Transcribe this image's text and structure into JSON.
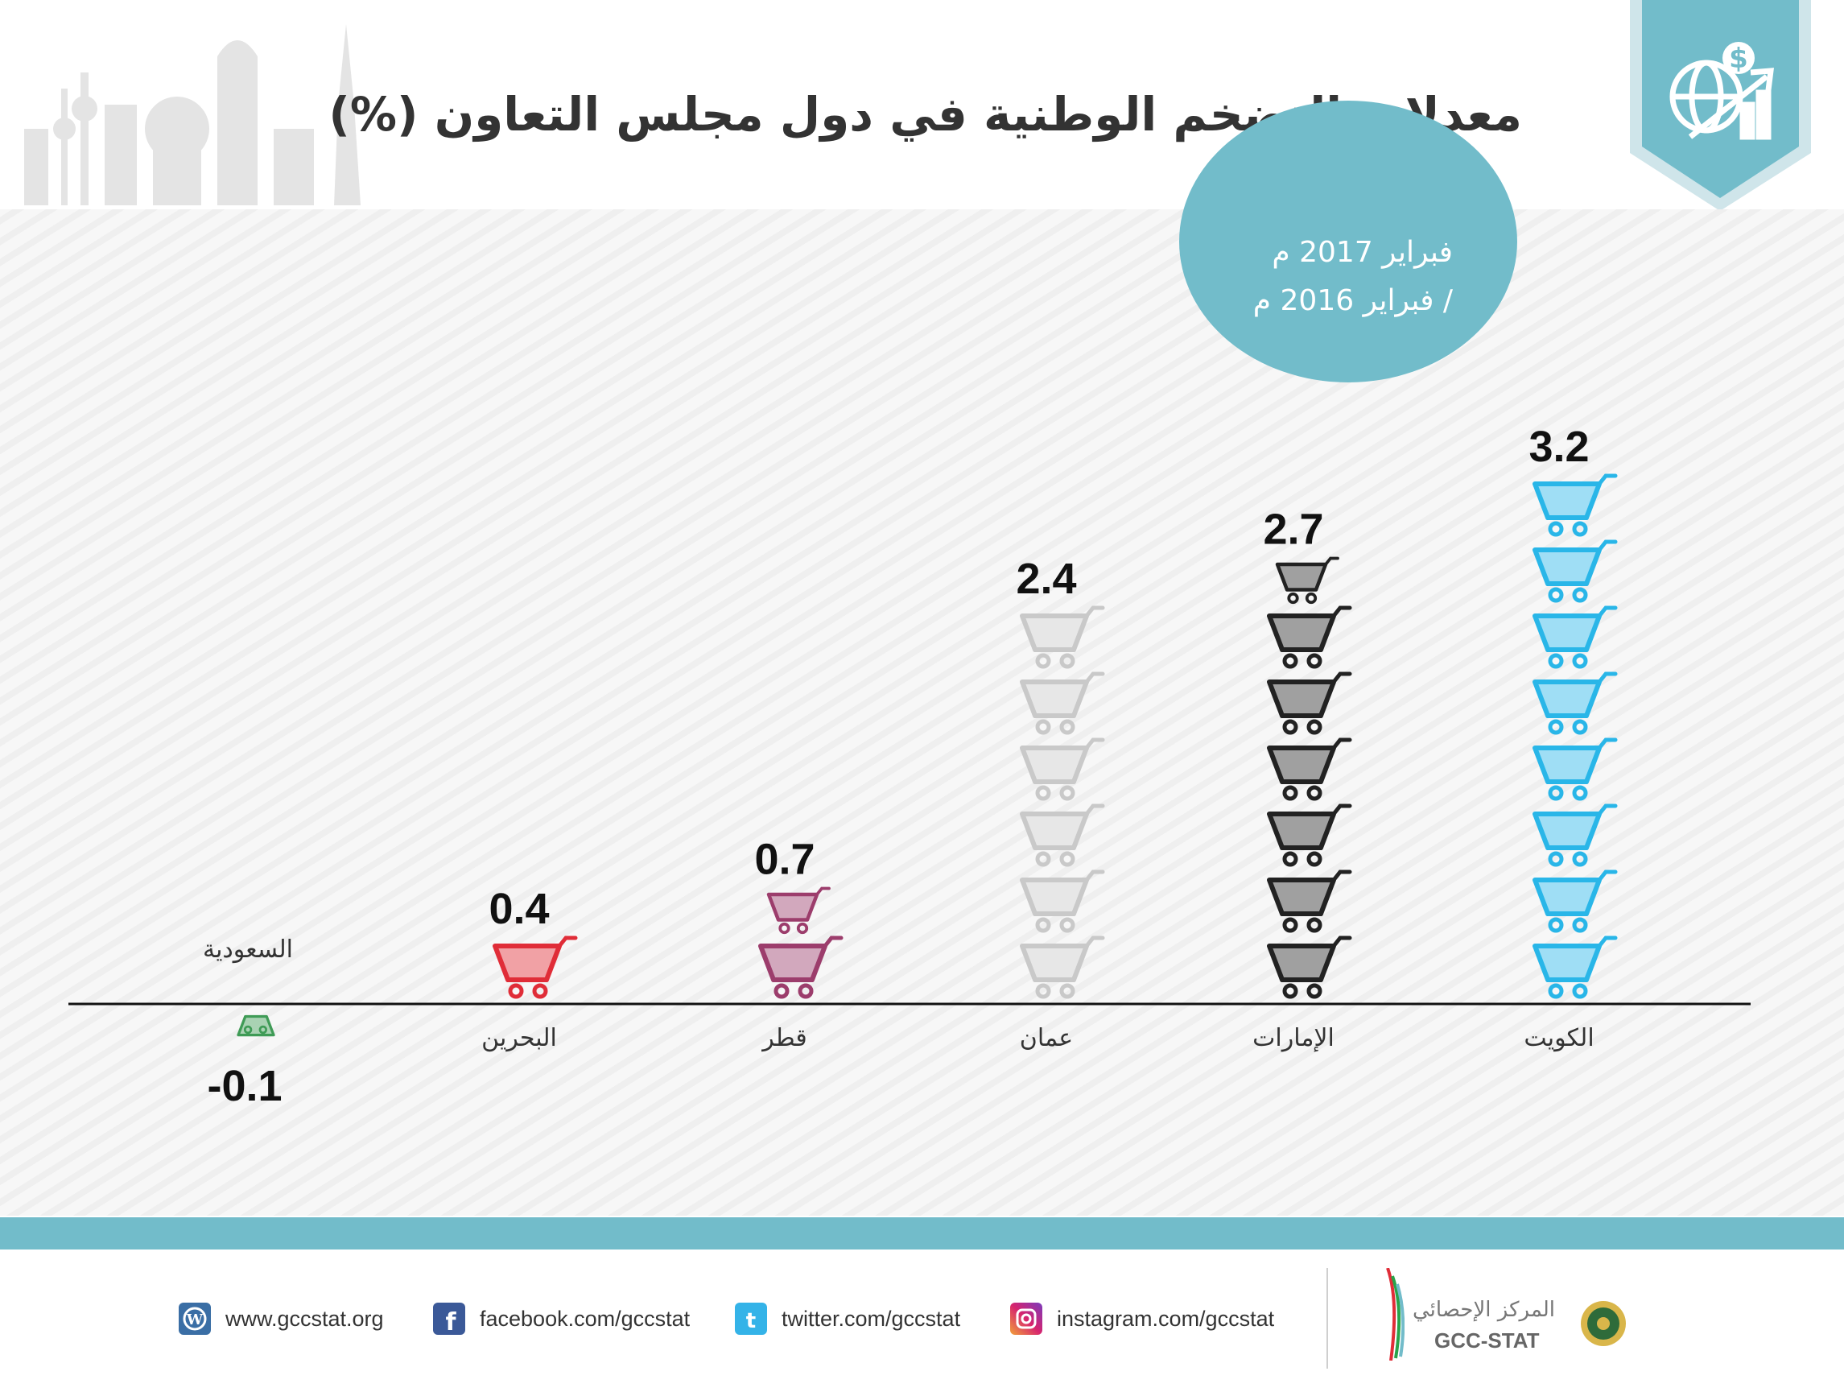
{
  "title": "معدلات التضخم الوطنية في دول مجلس التعاون (%)",
  "period": {
    "line1": "فبراير 2017 م",
    "line2": "/ فبراير 2016 م"
  },
  "colors": {
    "accent": "#72bcca",
    "kuwait": "#29b6e8",
    "uae": "#222222",
    "oman": "#c9c9c9",
    "qatar": "#9c3d6c",
    "bahrain": "#e02d38",
    "saudi": "#3f9b56"
  },
  "chart_data": {
    "type": "bar",
    "title": "معدلات التضخم الوطنية في دول مجلس التعاون (%)",
    "categories": [
      "الكويت",
      "الإمارات",
      "عمان",
      "قطر",
      "البحرين",
      "السعودية"
    ],
    "values": [
      3.2,
      2.7,
      2.4,
      0.7,
      0.4,
      -0.1
    ],
    "value_labels": [
      "3.2",
      "2.7",
      "2.4",
      "0.7",
      "0.4",
      "-0.1"
    ],
    "icon": "shopping-cart-icon",
    "xlabel": "",
    "ylabel": "",
    "grid": false
  },
  "footer": {
    "links": [
      {
        "icon": "wordpress-icon",
        "text": "www.gccstat.org"
      },
      {
        "icon": "facebook-icon",
        "text": "facebook.com/gccstat"
      },
      {
        "icon": "twitter-icon",
        "text": "twitter.com/gccstat"
      },
      {
        "icon": "instagram-icon",
        "text": "instagram.com/gccstat"
      }
    ],
    "brand_ar": "المركز الإحصائي",
    "brand_en": "GCC-STAT"
  }
}
